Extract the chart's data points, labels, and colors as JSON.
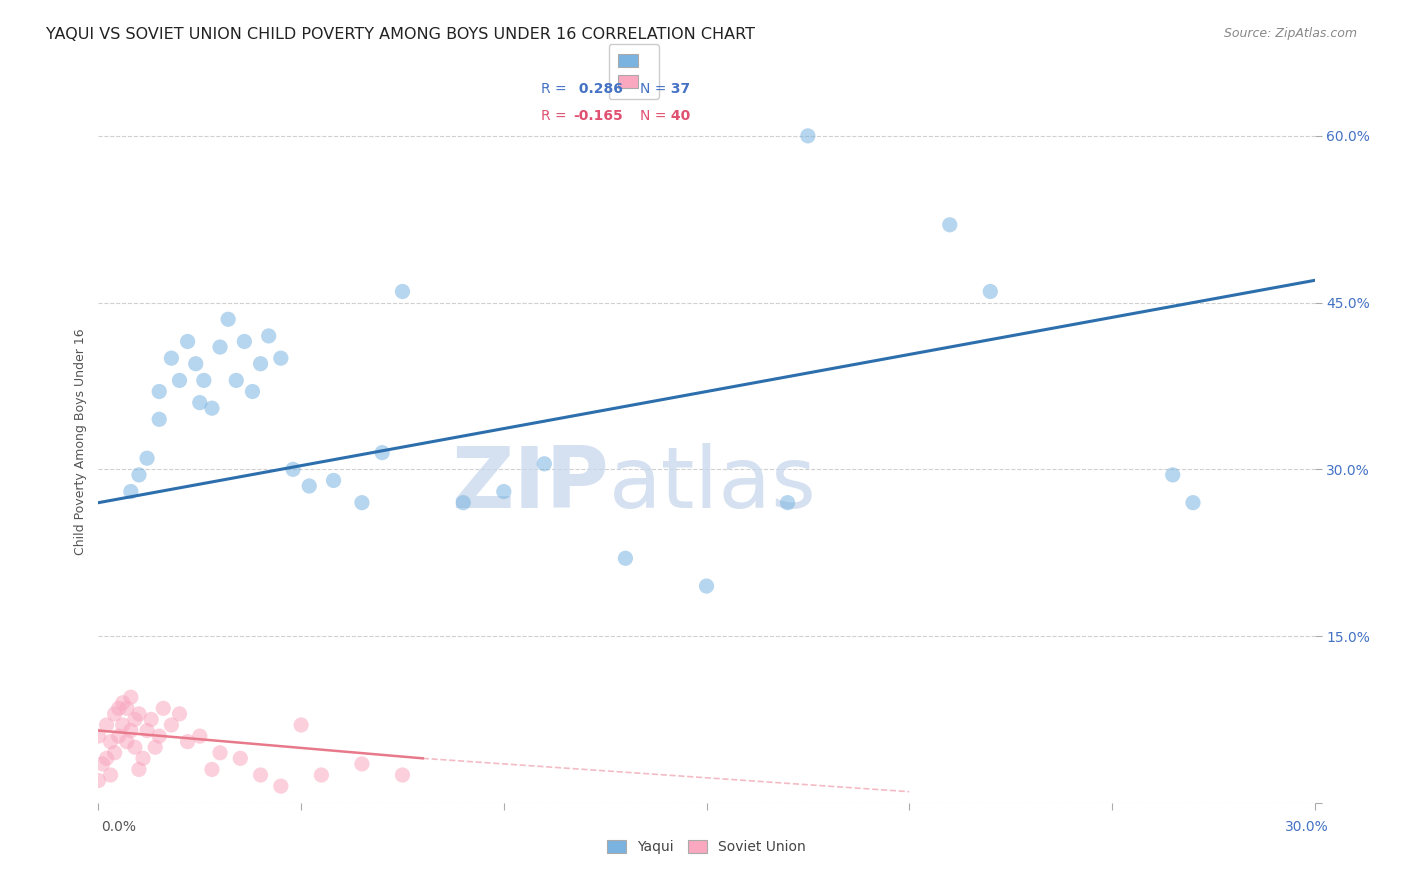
{
  "title": "YAQUI VS SOVIET UNION CHILD POVERTY AMONG BOYS UNDER 16 CORRELATION CHART",
  "source": "Source: ZipAtlas.com",
  "ylabel": "Child Poverty Among Boys Under 16",
  "yticks": [
    0.0,
    0.15,
    0.3,
    0.45,
    0.6
  ],
  "ytick_labels": [
    "",
    "15.0%",
    "30.0%",
    "45.0%",
    "60.0%"
  ],
  "xlim": [
    0.0,
    0.3
  ],
  "ylim": [
    0.0,
    0.65
  ],
  "watermark_zip": "ZIP",
  "watermark_atlas": "atlas",
  "legend_r1": "R =  0.286",
  "legend_n1": "N =  37",
  "legend_r2": "R = -0.165",
  "legend_n2": "N =  40",
  "legend_labels": [
    "Yaqui",
    "Soviet Union"
  ],
  "yaqui_x": [
    0.008,
    0.01,
    0.012,
    0.015,
    0.015,
    0.018,
    0.02,
    0.022,
    0.024,
    0.025,
    0.026,
    0.028,
    0.03,
    0.032,
    0.034,
    0.036,
    0.038,
    0.04,
    0.042,
    0.045,
    0.048,
    0.052,
    0.058,
    0.065,
    0.07,
    0.075,
    0.09,
    0.1,
    0.11,
    0.13,
    0.15,
    0.17,
    0.175,
    0.21,
    0.22,
    0.265,
    0.27
  ],
  "yaqui_y": [
    0.28,
    0.295,
    0.31,
    0.345,
    0.37,
    0.4,
    0.38,
    0.415,
    0.395,
    0.36,
    0.38,
    0.355,
    0.41,
    0.435,
    0.38,
    0.415,
    0.37,
    0.395,
    0.42,
    0.4,
    0.3,
    0.285,
    0.29,
    0.27,
    0.315,
    0.46,
    0.27,
    0.28,
    0.305,
    0.22,
    0.195,
    0.27,
    0.6,
    0.52,
    0.46,
    0.295,
    0.27
  ],
  "soviet_x": [
    0.0,
    0.0,
    0.001,
    0.002,
    0.002,
    0.003,
    0.003,
    0.004,
    0.004,
    0.005,
    0.005,
    0.006,
    0.006,
    0.007,
    0.007,
    0.008,
    0.008,
    0.009,
    0.009,
    0.01,
    0.01,
    0.011,
    0.012,
    0.013,
    0.014,
    0.015,
    0.016,
    0.018,
    0.02,
    0.022,
    0.025,
    0.028,
    0.03,
    0.035,
    0.04,
    0.045,
    0.05,
    0.055,
    0.065,
    0.075
  ],
  "soviet_y": [
    0.02,
    0.06,
    0.035,
    0.04,
    0.07,
    0.025,
    0.055,
    0.045,
    0.08,
    0.06,
    0.085,
    0.07,
    0.09,
    0.055,
    0.085,
    0.065,
    0.095,
    0.05,
    0.075,
    0.03,
    0.08,
    0.04,
    0.065,
    0.075,
    0.05,
    0.06,
    0.085,
    0.07,
    0.08,
    0.055,
    0.06,
    0.03,
    0.045,
    0.04,
    0.025,
    0.015,
    0.07,
    0.025,
    0.035,
    0.025
  ],
  "yaqui_color": "#7ab3e0",
  "soviet_color": "#f9a8c0",
  "yaqui_line_color": "#2d6fad",
  "soviet_line_color": "#e8798a",
  "background_color": "#ffffff",
  "grid_color": "#d0d0d0",
  "marker_size": 120,
  "marker_alpha": 0.55,
  "title_fontsize": 11.5,
  "axis_label_fontsize": 9,
  "tick_fontsize": 10,
  "source_fontsize": 9
}
